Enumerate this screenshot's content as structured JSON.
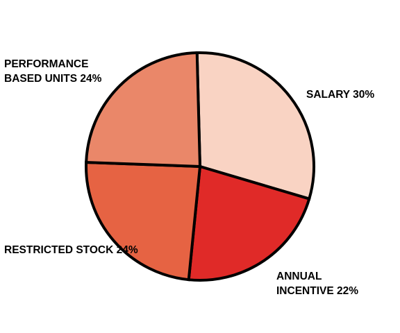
{
  "chart_data": {
    "type": "pie",
    "title": "",
    "slices": [
      {
        "label_lines": [
          "SALARY 30%"
        ],
        "value": 30,
        "color": "#f9d3c3"
      },
      {
        "label_lines": [
          "ANNUAL",
          "INCENTIVE 22%"
        ],
        "value": 22,
        "color": "#e02a28"
      },
      {
        "label_lines": [
          "RESTRICTED STOCK 24%"
        ],
        "value": 24,
        "color": "#e66343"
      },
      {
        "label_lines": [
          "PERFORMANCE",
          "BASED UNITS 24%"
        ],
        "value": 24,
        "color": "#ea8769"
      }
    ],
    "start": "top",
    "direction": "clockwise",
    "legend": "none"
  }
}
